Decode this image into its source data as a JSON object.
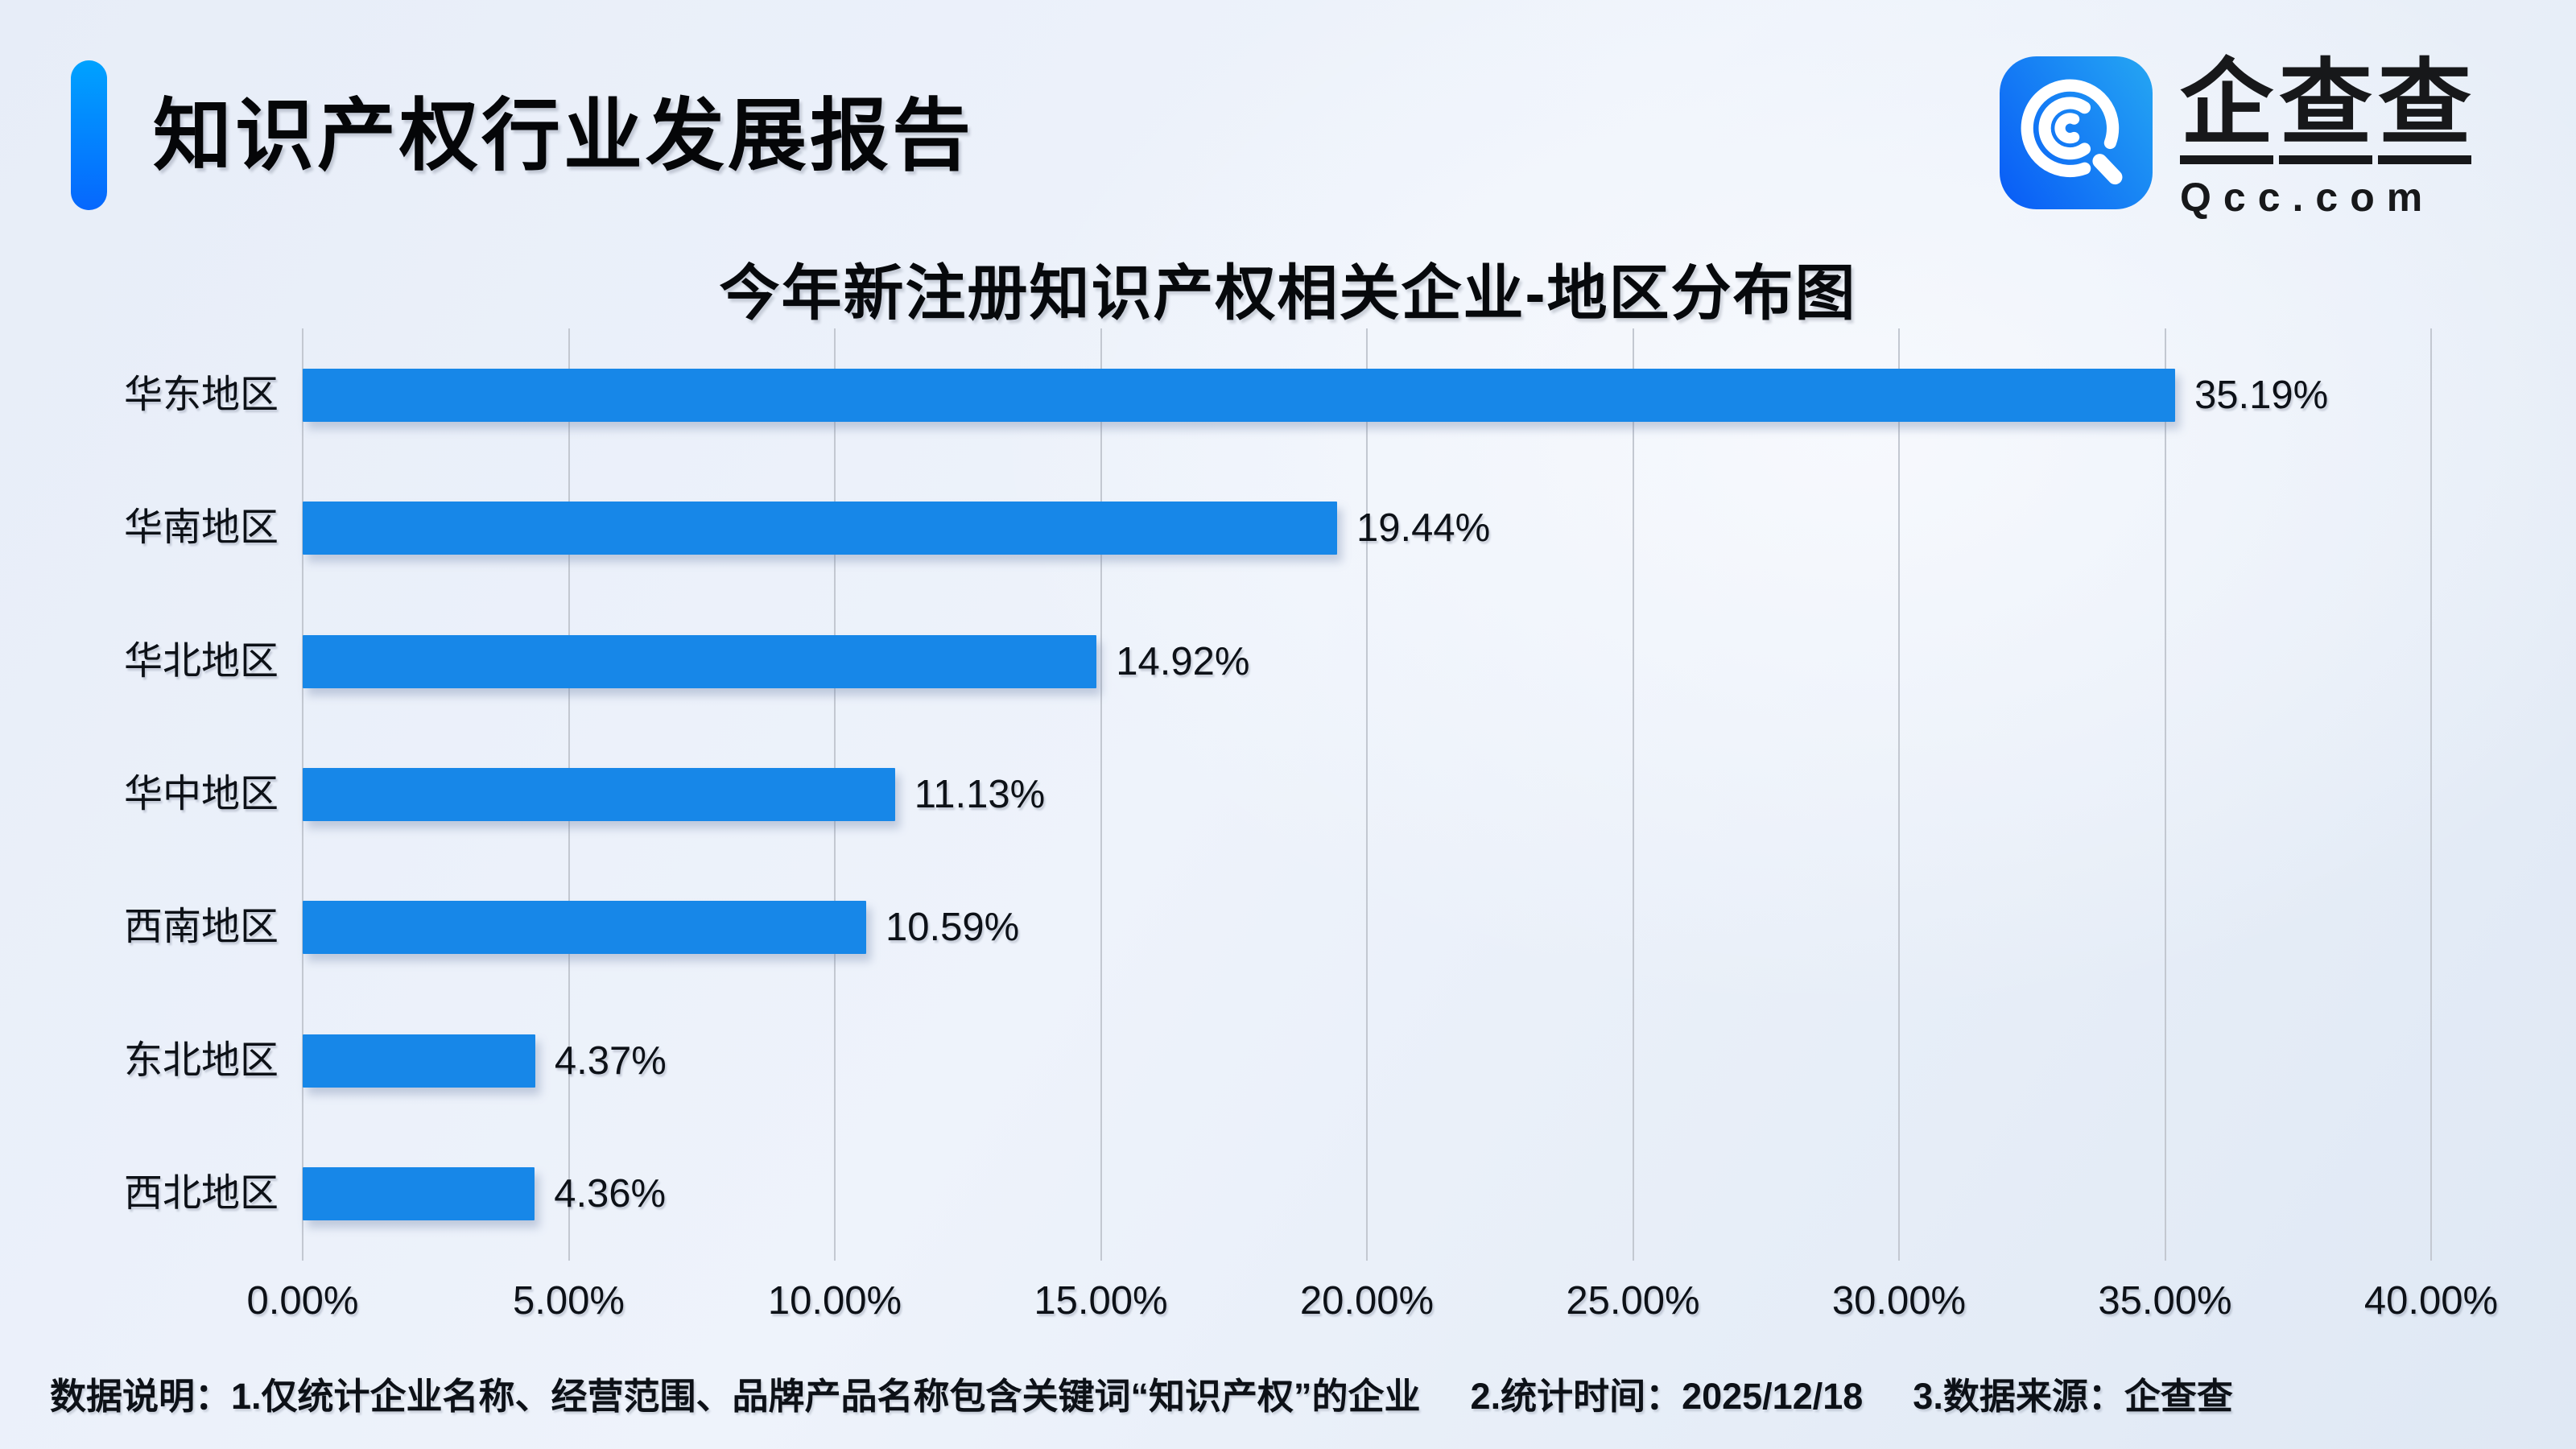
{
  "header": {
    "title": "知识产权行业发展报告"
  },
  "logo": {
    "icon": "qcc-magnifier-icon",
    "brand_cn": [
      "企",
      "查",
      "查"
    ],
    "domain": "Qcc.com"
  },
  "chart_data": {
    "type": "bar",
    "orientation": "horizontal",
    "title": "今年新注册知识产权相关企业-地区分布图",
    "categories": [
      "华东地区",
      "华南地区",
      "华北地区",
      "华中地区",
      "西南地区",
      "东北地区",
      "西北地区"
    ],
    "values": [
      35.19,
      19.44,
      14.92,
      11.13,
      10.59,
      4.37,
      4.36
    ],
    "value_labels": [
      "35.19%",
      "19.44%",
      "14.92%",
      "11.13%",
      "10.59%",
      "4.37%",
      "4.36%"
    ],
    "x_ticks": [
      0,
      5,
      10,
      15,
      20,
      25,
      30,
      35,
      40
    ],
    "x_tick_labels": [
      "0.00%",
      "5.00%",
      "10.00%",
      "15.00%",
      "20.00%",
      "25.00%",
      "30.00%",
      "35.00%",
      "40.00%"
    ],
    "xlim": [
      0,
      40
    ],
    "grid": "vertical",
    "legend": "none",
    "bar_color": "#1787e8"
  },
  "footer": {
    "parts": [
      "数据说明：1.仅统计企业名称、经营范围、品牌产品名称包含关键词“知识产权”的企业",
      "2.统计时间：2025/12/18",
      "3.数据来源：企查查"
    ]
  },
  "colors": {
    "bar_blue": "#1787e8",
    "accent_top": "#00a2ff",
    "accent_bottom": "#0667fd",
    "logo_gradient_dark": "#0a5ff6",
    "logo_gradient_light": "#23a2f3",
    "gridline": "#c3c8d1",
    "background": "#ebf1fa",
    "text": "#0d1117"
  }
}
